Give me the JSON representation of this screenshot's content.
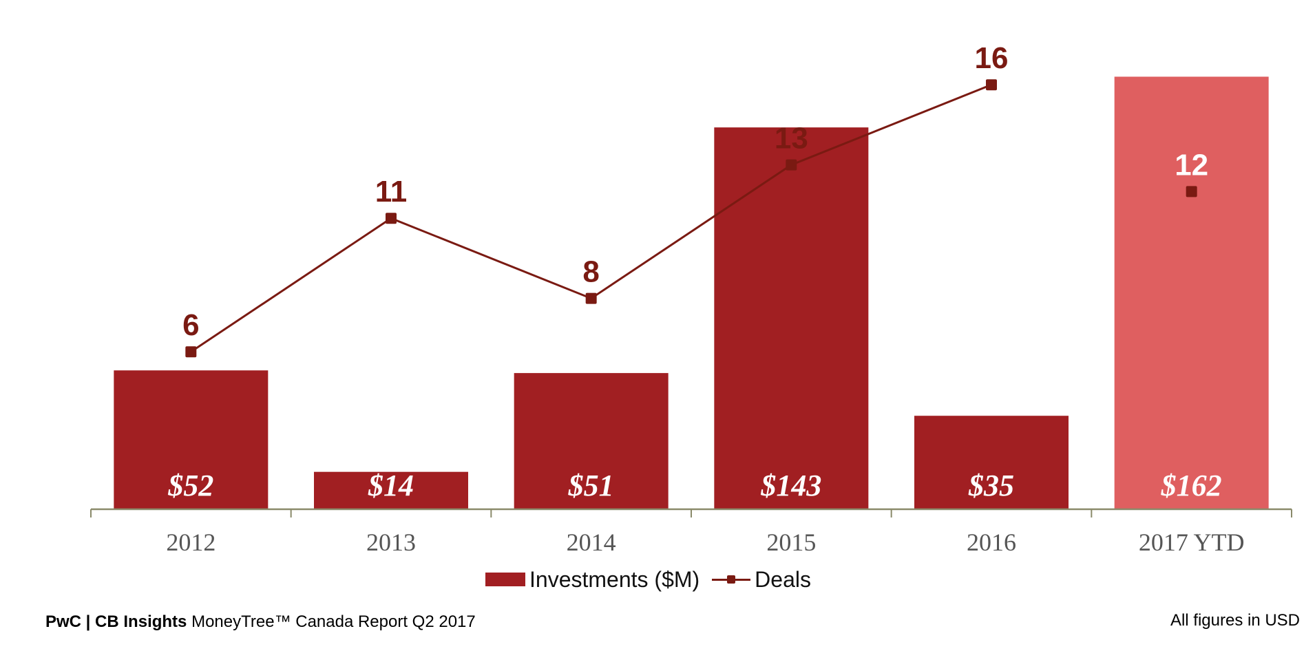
{
  "colors": {
    "bar": "#a11f22",
    "bar_highlight": "#df5f60",
    "line": "#7a1a12",
    "axis": "#8a8a6a"
  },
  "chart_data": {
    "type": "bar",
    "categories": [
      "2012",
      "2013",
      "2014",
      "2015",
      "2016",
      "2017 YTD"
    ],
    "series": [
      {
        "name": "Investments ($M)",
        "type": "bar",
        "values": [
          52,
          14,
          51,
          143,
          35,
          162
        ],
        "labels": [
          "$52",
          "$14",
          "$51",
          "$143",
          "$35",
          "$162"
        ],
        "highlight_last": true
      },
      {
        "name": "Deals",
        "type": "line",
        "values": [
          6,
          11,
          8,
          13,
          16,
          12
        ],
        "labels": [
          "6",
          "11",
          "8",
          "13",
          "16",
          "12"
        ],
        "last_point_unconnected": true
      }
    ],
    "legend_position": "bottom-center",
    "grid": false
  },
  "legend": {
    "bar_label": "Investments ($M)",
    "line_label": "Deals"
  },
  "footer": {
    "brand": "PwC | CB Insights",
    "report": "MoneyTree™ Canada Report Q2 2017",
    "note": "All figures in USD"
  }
}
